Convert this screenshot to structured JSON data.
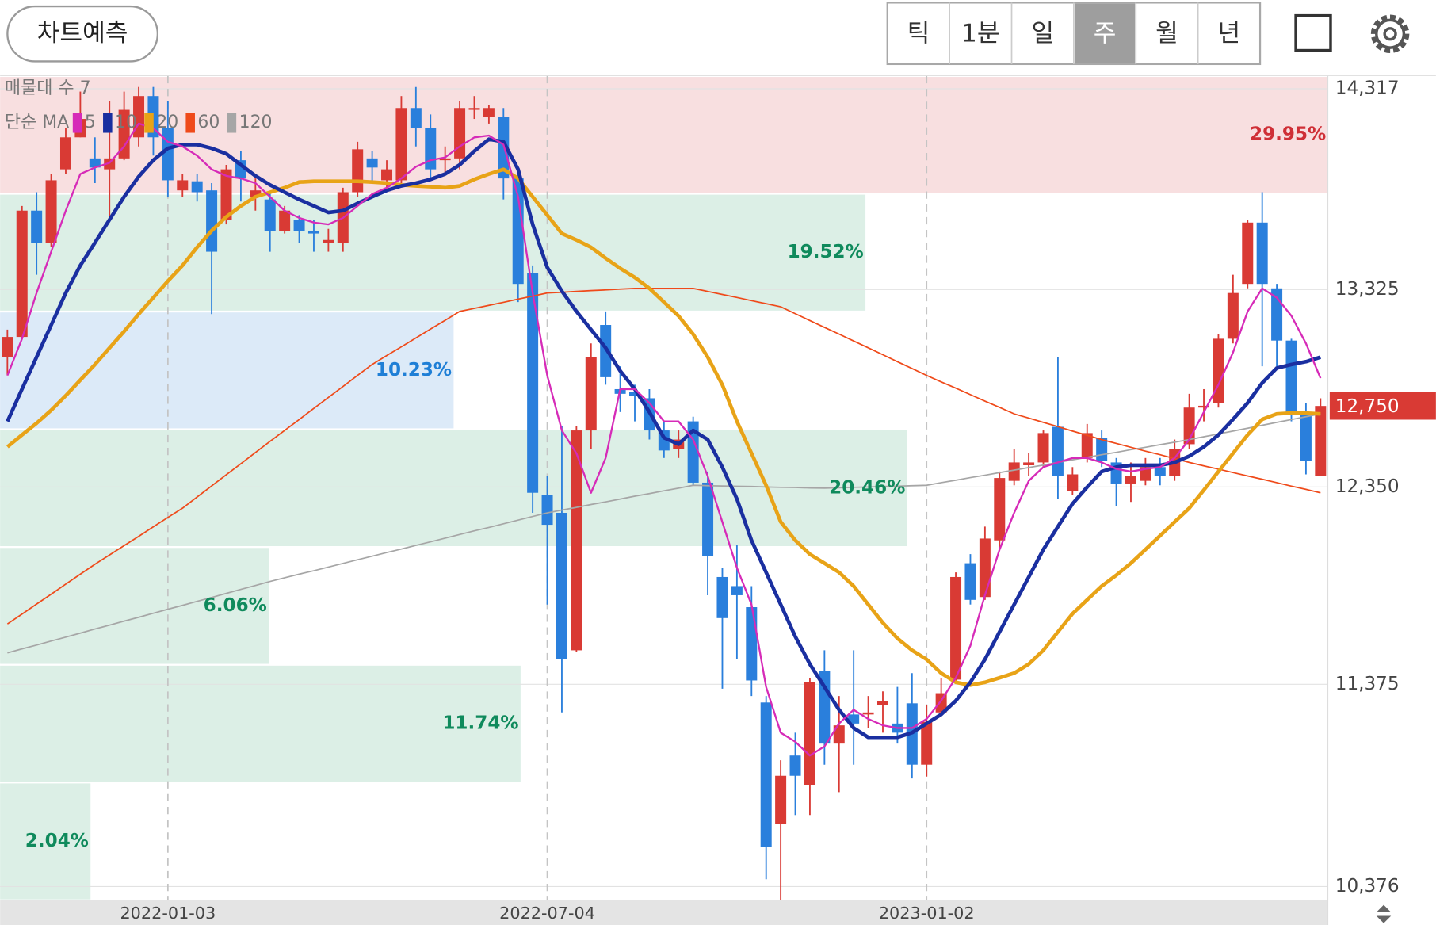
{
  "toolbar": {
    "predict_button": "차트예측",
    "periods": [
      "틱",
      "1분",
      "일",
      "주",
      "월",
      "년"
    ],
    "selected_index": 3
  },
  "chart_data": {
    "type": "candlestick",
    "categories": [
      null,
      null,
      null,
      null,
      null,
      null,
      null,
      null,
      null,
      null,
      null,
      "2022-01-03",
      null,
      null,
      null,
      null,
      null,
      null,
      null,
      null,
      null,
      null,
      null,
      null,
      null,
      null,
      null,
      null,
      null,
      null,
      null,
      null,
      null,
      null,
      null,
      null,
      null,
      "2022-07-04",
      null,
      null,
      null,
      null,
      null,
      null,
      null,
      null,
      null,
      null,
      null,
      null,
      null,
      null,
      null,
      null,
      null,
      null,
      null,
      null,
      null,
      null,
      null,
      null,
      null,
      "2023-01-02",
      null,
      null,
      null,
      null,
      null,
      null,
      null,
      null,
      null,
      null,
      null,
      null,
      null,
      null,
      null,
      null,
      null,
      null,
      null,
      null,
      null,
      null,
      null,
      null,
      null,
      null,
      null
    ],
    "candles": {
      "open": [
        12991,
        13091,
        13715,
        13557,
        13919,
        14077,
        13973,
        13919,
        13973,
        14077,
        14281,
        14122,
        13815,
        13860,
        13815,
        13670,
        13964,
        13783,
        13770,
        13616,
        13670,
        13616,
        13557,
        13557,
        13806,
        13973,
        13865,
        13865,
        14222,
        14122,
        13964,
        13973,
        14213,
        14177,
        14177,
        13874,
        13407,
        12312,
        12222,
        11543,
        12629,
        13150,
        12833,
        12819,
        12788,
        12629,
        12539,
        12674,
        12371,
        11905,
        11860,
        11756,
        11285,
        10684,
        11023,
        10878,
        11439,
        11082,
        11226,
        11226,
        11272,
        11181,
        11281,
        10978,
        11236,
        11398,
        11973,
        11806,
        12086,
        12380,
        12457,
        12471,
        12647,
        12331,
        12493,
        12593,
        12471,
        12367,
        12380,
        12448,
        12403,
        12561,
        12742,
        12765,
        13082,
        13353,
        13656,
        13331,
        13073,
        12711,
        12403
      ],
      "high": [
        13127,
        13738,
        13806,
        13896,
        14122,
        14303,
        14077,
        14258,
        14303,
        14326,
        14326,
        14258,
        13896,
        13896,
        13851,
        13941,
        14009,
        13874,
        13806,
        13738,
        13693,
        13670,
        13625,
        13828,
        14055,
        14009,
        13964,
        14281,
        14326,
        14190,
        14032,
        14258,
        14281,
        14236,
        14222,
        13896,
        13444,
        12403,
        12652,
        12652,
        13059,
        13217,
        12946,
        12855,
        12833,
        12674,
        12629,
        12697,
        12426,
        11950,
        12064,
        11860,
        11317,
        11000,
        11136,
        11407,
        11543,
        11317,
        11543,
        11317,
        11340,
        11362,
        11430,
        11272,
        11407,
        11928,
        12018,
        12154,
        12426,
        12539,
        12516,
        12629,
        12991,
        12448,
        12661,
        12629,
        12493,
        12471,
        12493,
        12493,
        12584,
        12810,
        12833,
        13104,
        13398,
        13670,
        13806,
        13353,
        13082,
        12765,
        12788
      ],
      "low": [
        12901,
        13082,
        13398,
        13534,
        13896,
        14077,
        13851,
        13670,
        13964,
        14032,
        13987,
        13783,
        13783,
        13760,
        13204,
        13647,
        13760,
        13715,
        13512,
        13602,
        13557,
        13512,
        13512,
        13512,
        13783,
        13851,
        13828,
        13851,
        14032,
        13874,
        13896,
        13919,
        14168,
        14145,
        13770,
        13263,
        12222,
        11769,
        11236,
        11534,
        12539,
        12855,
        12720,
        12674,
        12584,
        12493,
        12493,
        12358,
        11815,
        11353,
        11498,
        11317,
        10412,
        10308,
        10729,
        10729,
        10978,
        10842,
        10978,
        11159,
        11136,
        11082,
        10910,
        10919,
        11226,
        11385,
        11769,
        11792,
        12041,
        12358,
        12403,
        12448,
        12290,
        12312,
        12471,
        12448,
        12254,
        12276,
        12358,
        12358,
        12380,
        12539,
        12674,
        12742,
        13059,
        13331,
        12946,
        12946,
        12674,
        12412,
        12403
      ],
      "close": [
        13091,
        13715,
        13557,
        13865,
        14077,
        14168,
        13928,
        13973,
        14213,
        14281,
        14077,
        13865,
        13865,
        13806,
        13512,
        13919,
        13874,
        13815,
        13616,
        13715,
        13616,
        13602,
        13570,
        13806,
        14018,
        13928,
        13919,
        14222,
        14122,
        13919,
        13973,
        14222,
        14222,
        14222,
        13874,
        13353,
        12321,
        12163,
        11498,
        12629,
        12991,
        12892,
        12810,
        12801,
        12629,
        12530,
        12584,
        12371,
        12009,
        11702,
        11815,
        11394,
        10570,
        10923,
        10923,
        11385,
        11082,
        11172,
        11181,
        11236,
        11294,
        11136,
        10978,
        11190,
        11331,
        11905,
        11792,
        12095,
        12394,
        12471,
        12471,
        12616,
        12403,
        12412,
        12616,
        12480,
        12367,
        12403,
        12448,
        12403,
        12539,
        12742,
        12751,
        13082,
        13308,
        13656,
        13353,
        13073,
        12711,
        12480,
        12750
      ],
      "up_color": "#d93a34",
      "down_color": "#2a7fdc"
    },
    "ma_legend_title": "단순 MA",
    "series": [
      {
        "name": "5",
        "color": "#d62bb8",
        "width": 2,
        "values": [
          12901,
          13082,
          13308,
          13512,
          13715,
          13896,
          13928,
          13951,
          14032,
          14145,
          14122,
          14055,
          14032,
          13987,
          13919,
          13887,
          13874,
          13851,
          13783,
          13715,
          13679,
          13656,
          13647,
          13679,
          13738,
          13797,
          13828,
          13874,
          13932,
          13964,
          13978,
          14032,
          14077,
          14086,
          14041,
          13783,
          13308,
          12901,
          12629,
          12516,
          12321,
          12493,
          12833,
          12833,
          12765,
          12674,
          12674,
          12584,
          12403,
          12177,
          11950,
          11769,
          11362,
          11136,
          11091,
          11023,
          11068,
          11181,
          11249,
          11204,
          11172,
          11159,
          11159,
          11204,
          11294,
          11407,
          11566,
          11815,
          12041,
          12222,
          12380,
          12448,
          12471,
          12493,
          12493,
          12471,
          12439,
          12426,
          12439,
          12448,
          12493,
          12584,
          12720,
          12855,
          13014,
          13217,
          13331,
          13285,
          13195,
          13059,
          12887
        ]
      },
      {
        "name": "10",
        "color": "#1a2fa0",
        "width": 4,
        "values": [
          12674,
          12833,
          12991,
          13150,
          13308,
          13444,
          13557,
          13670,
          13783,
          13883,
          13964,
          14023,
          14041,
          14041,
          14023,
          13996,
          13941,
          13887,
          13842,
          13806,
          13770,
          13738,
          13706,
          13715,
          13751,
          13783,
          13815,
          13837,
          13851,
          13869,
          13896,
          13941,
          14009,
          14068,
          14055,
          13919,
          13647,
          13435,
          13317,
          13217,
          13127,
          13037,
          12923,
          12833,
          12720,
          12593,
          12561,
          12629,
          12584,
          12448,
          12290,
          12086,
          11928,
          11769,
          11611,
          11475,
          11362,
          11249,
          11159,
          11113,
          11113,
          11113,
          11136,
          11181,
          11226,
          11294,
          11385,
          11498,
          11634,
          11769,
          11905,
          12041,
          12154,
          12267,
          12349,
          12426,
          12448,
          12457,
          12457,
          12457,
          12471,
          12502,
          12548,
          12607,
          12684,
          12765,
          12864,
          12937,
          12955,
          12969,
          12991
        ]
      },
      {
        "name": "20",
        "color": "#e8a317",
        "width": 4,
        "values": [
          12548,
          12607,
          12665,
          12729,
          12801,
          12878,
          12955,
          13037,
          13118,
          13204,
          13285,
          13367,
          13444,
          13534,
          13616,
          13684,
          13738,
          13783,
          13806,
          13828,
          13856,
          13860,
          13860,
          13860,
          13860,
          13856,
          13851,
          13842,
          13837,
          13833,
          13828,
          13837,
          13869,
          13896,
          13919,
          13874,
          13783,
          13693,
          13602,
          13570,
          13534,
          13480,
          13430,
          13385,
          13331,
          13263,
          13195,
          13104,
          12991,
          12855,
          12674,
          12516,
          12358,
          12177,
          12086,
          12018,
          11973,
          11928,
          11860,
          11769,
          11679,
          11602,
          11543,
          11498,
          11430,
          11385,
          11371,
          11385,
          11407,
          11430,
          11475,
          11543,
          11634,
          11724,
          11792,
          11860,
          11914,
          11973,
          12041,
          12109,
          12177,
          12245,
          12335,
          12426,
          12516,
          12607,
          12684,
          12711,
          12715,
          12715,
          12711
        ]
      },
      {
        "name": "60",
        "color": "#ef4a1a",
        "width": 1.5,
        "values": [
          11673,
          11722,
          11771,
          11820,
          11870,
          11919,
          11968,
          12014,
          12060,
          12106,
          12153,
          12199,
          12245,
          12300,
          12355,
          12410,
          12465,
          12520,
          12575,
          12629,
          12683,
          12738,
          12792,
          12846,
          12901,
          12955,
          12999,
          13042,
          13086,
          13130,
          13173,
          13217,
          13232,
          13247,
          13262,
          13278,
          13293,
          13308,
          13312,
          13316,
          13320,
          13323,
          13327,
          13331,
          13331,
          13331,
          13331,
          13331,
          13316,
          13301,
          13286,
          13270,
          13255,
          13240,
          13206,
          13172,
          13138,
          13105,
          13071,
          13037,
          13003,
          12969,
          12935,
          12901,
          12869,
          12838,
          12806,
          12774,
          12743,
          12711,
          12690,
          12669,
          12648,
          12626,
          12605,
          12584,
          12565,
          12546,
          12527,
          12509,
          12490,
          12471,
          12454,
          12438,
          12421,
          12404,
          12388,
          12371,
          12354,
          12338,
          12321
        ]
      },
      {
        "name": "120",
        "color": "#a6a6a6",
        "width": 1.5,
        "values": [
          11530,
          11550,
          11569,
          11589,
          11608,
          11628,
          11648,
          11667,
          11687,
          11706,
          11726,
          11746,
          11765,
          11785,
          11804,
          11824,
          11844,
          11863,
          11883,
          11901,
          11919,
          11936,
          11954,
          11972,
          11990,
          12008,
          12026,
          12043,
          12061,
          12079,
          12097,
          12115,
          12133,
          12150,
          12168,
          12186,
          12204,
          12222,
          12236,
          12249,
          12263,
          12276,
          12290,
          12304,
          12317,
          12331,
          12344,
          12358,
          12356,
          12355,
          12353,
          12352,
          12350,
          12348,
          12347,
          12345,
          12344,
          12346,
          12348,
          12350,
          12352,
          12354,
          12356,
          12358,
          12371,
          12383,
          12396,
          12408,
          12421,
          12433,
          12446,
          12458,
          12471,
          12484,
          12496,
          12509,
          12521,
          12534,
          12546,
          12559,
          12571,
          12584,
          12598,
          12612,
          12626,
          12640,
          12655,
          12669,
          12683,
          12697,
          12711
        ]
      }
    ],
    "volume_profile": {
      "title": "매물대 수 7",
      "values": [
        29.95,
        19.52,
        10.23,
        20.46,
        6.06,
        11.74,
        2.04
      ],
      "value_labels": [
        "29.95%",
        "19.52%",
        "10.23%",
        "20.46%",
        "6.06%",
        "11.74%",
        "2.04%"
      ],
      "fills": [
        "#f8dfe0",
        "#dcefe6",
        "#dceaf8",
        "#dcefe6",
        "#dcefe6",
        "#dcefe6",
        "#dcefe6"
      ],
      "label_colors": [
        "#cf2f36",
        "#0f8a5c",
        "#1f7fd6",
        "#0f8a5c",
        "#0f8a5c",
        "#0f8a5c",
        "#0f8a5c"
      ]
    },
    "ylim": [
      10308,
      14380
    ],
    "yticks": [
      {
        "value": 10376,
        "label": "10,376"
      },
      {
        "value": 11375,
        "label": "11,375"
      },
      {
        "value": 12350,
        "label": "12,350"
      },
      {
        "value": 13325,
        "label": "13,325"
      },
      {
        "value": 14317,
        "label": "14,317"
      }
    ],
    "grid": true,
    "current_price": {
      "value": 12750,
      "label": "12,750"
    }
  }
}
